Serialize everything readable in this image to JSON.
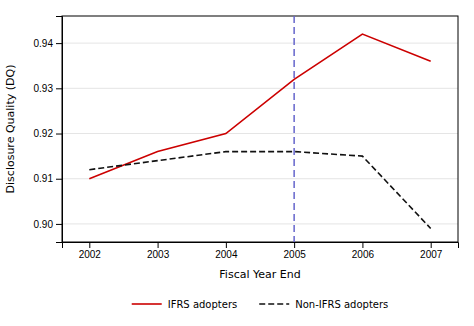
{
  "chart_data": {
    "type": "line",
    "x_label": "Fiscal Year End",
    "y_label": "Disclosure Quality (DQ)",
    "x": [
      2002,
      2003,
      2004,
      2005,
      2006,
      2007
    ],
    "series": [
      {
        "name": "IFRS adopters",
        "color": "#cc0000",
        "line_style": "solid",
        "values": [
          0.91,
          0.916,
          0.92,
          0.932,
          0.942,
          0.936
        ]
      },
      {
        "name": "Non-IFRS adopters",
        "color": "#111111",
        "line_style": "dashed",
        "values": [
          0.912,
          0.914,
          0.916,
          0.916,
          0.915,
          0.899
        ]
      }
    ],
    "vline": {
      "x": 2005,
      "color": "#6666cc",
      "line_style": "dashed"
    },
    "xlim": [
      2001.6,
      2007.4
    ],
    "xticks": [
      2002,
      2003,
      2004,
      2005,
      2006,
      2007
    ],
    "ylim": [
      0.896,
      0.946
    ],
    "yticks": [
      {
        "value": 0.9,
        "label": "0.90"
      },
      0.91,
      0.92,
      0.93,
      0.94
    ],
    "grid": true,
    "legend": "bottom"
  }
}
